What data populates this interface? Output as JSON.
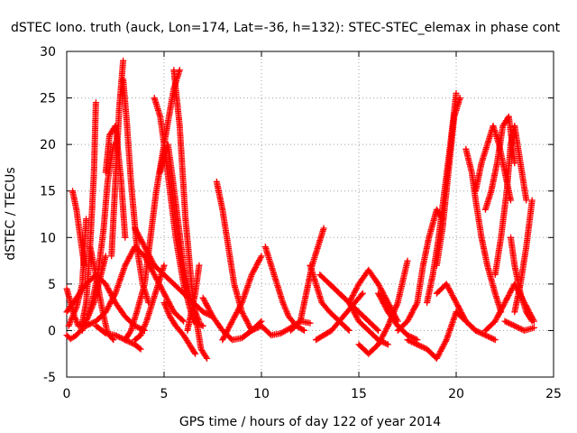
{
  "chart_data": {
    "type": "scatter",
    "title": "dSTEC Iono. truth (auck, Lon=174, Lat=-36, h=132): STEC-STEC_elemax in phase cont",
    "xlabel": "GPS time / hours of day 122 of year 2014",
    "ylabel": "dSTEC  / TECUs",
    "xlim": [
      0,
      25
    ],
    "ylim": [
      -5,
      30
    ],
    "x_ticks": [
      0,
      5,
      10,
      15,
      20,
      25
    ],
    "y_ticks": [
      -5,
      0,
      5,
      10,
      15,
      20,
      25,
      30
    ],
    "grid": true,
    "marker": "+",
    "color": "#ff0000",
    "series": [
      {
        "x": [
          0.0,
          0.2,
          0.4,
          0.6,
          0.8,
          1.0,
          1.2,
          1.4,
          1.5
        ],
        "y": [
          4.5,
          3,
          1.5,
          0.5,
          0.8,
          3,
          9,
          17,
          24.5
        ]
      },
      {
        "x": [
          0.1,
          0.3,
          0.5,
          0.8,
          1.0
        ],
        "y": [
          0.5,
          1.5,
          2.5,
          5,
          12
        ]
      },
      {
        "x": [
          0.3,
          0.5,
          0.7,
          0.9
        ],
        "y": [
          15,
          13,
          10,
          7
        ]
      },
      {
        "x": [
          0.0,
          0.2,
          0.5,
          0.8,
          1.1,
          1.4,
          1.7,
          2.0
        ],
        "y": [
          -0.5,
          -0.9,
          -0.5,
          0.2,
          1.5,
          3,
          5.5,
          8
        ]
      },
      {
        "x": [
          1.2,
          1.5,
          1.8,
          2.1,
          2.4
        ],
        "y": [
          9,
          6,
          2.5,
          -0.3,
          -1
        ]
      },
      {
        "x": [
          0.8,
          1.0,
          1.3,
          1.6,
          1.9,
          2.1,
          2.4
        ],
        "y": [
          0,
          1,
          3,
          6,
          11,
          16,
          20
        ]
      },
      {
        "x": [
          2.0,
          2.2,
          2.5,
          2.8,
          3.0
        ],
        "y": [
          17,
          21,
          22,
          16,
          10
        ]
      },
      {
        "x": [
          2.3,
          2.5,
          2.7,
          2.9
        ],
        "y": [
          8,
          16,
          24,
          29
        ]
      },
      {
        "x": [
          2.9,
          3.1,
          3.3,
          3.6,
          3.9,
          4.2
        ],
        "y": [
          27,
          22,
          16,
          9,
          5,
          3
        ]
      },
      {
        "x": [
          1.5,
          2.0,
          2.5,
          3.0,
          3.5,
          3.8
        ],
        "y": [
          0.5,
          -0.3,
          -0.5,
          -1,
          -1.5,
          -2
        ]
      },
      {
        "x": [
          3.5,
          3.8,
          4.1,
          4.4,
          4.7,
          5.0
        ],
        "y": [
          -1,
          -0.5,
          1,
          3,
          5,
          7
        ]
      },
      {
        "x": [
          3.0,
          3.3,
          3.6,
          4.0,
          4.3,
          4.6,
          5.0,
          5.5,
          5.8
        ],
        "y": [
          -1,
          0,
          2,
          5,
          10,
          15,
          20,
          26,
          28
        ]
      },
      {
        "x": [
          4.5,
          4.8,
          5.0,
          5.3,
          5.6,
          6.0,
          6.5,
          7.0
        ],
        "y": [
          25,
          23,
          20,
          15,
          10,
          5,
          1,
          0.5
        ]
      },
      {
        "x": [
          4.8,
          5.0,
          5.2,
          5.4,
          5.7,
          6.0,
          6.4,
          6.8
        ],
        "y": [
          17,
          19,
          20,
          17,
          12,
          7,
          3,
          1
        ]
      },
      {
        "x": [
          5.5,
          5.8,
          6.1,
          6.5,
          6.9,
          7.2
        ],
        "y": [
          28,
          22,
          12,
          3,
          -2,
          -3
        ]
      },
      {
        "x": [
          5.0,
          5.3,
          5.6,
          6.0,
          6.3,
          6.6
        ],
        "y": [
          3,
          1.5,
          0.5,
          -0.5,
          -1.5,
          -2.5
        ]
      },
      {
        "x": [
          6.2,
          6.4,
          6.6,
          6.8
        ],
        "y": [
          0,
          2,
          4,
          7
        ]
      },
      {
        "x": [
          7.7,
          8.0,
          8.3,
          8.6,
          9.0,
          9.5
        ],
        "y": [
          16,
          13,
          9,
          5,
          2,
          0
        ]
      },
      {
        "x": [
          7.0,
          7.5,
          8.0,
          8.5,
          9.0,
          9.5,
          10.0
        ],
        "y": [
          3.5,
          1.5,
          0,
          -1,
          -0.8,
          0,
          1
        ]
      },
      {
        "x": [
          8.0,
          8.5,
          9.0,
          9.5,
          10.0
        ],
        "y": [
          -1,
          1,
          3,
          6,
          8
        ]
      },
      {
        "x": [
          9.5,
          10.0,
          10.5,
          11.0,
          11.5,
          12.0,
          12.5
        ],
        "y": [
          0,
          0.5,
          -0.5,
          -0.3,
          0.3,
          1,
          0.8
        ]
      },
      {
        "x": [
          10.2,
          10.5,
          10.8,
          11.1,
          11.4,
          11.8,
          12.2
        ],
        "y": [
          9,
          7,
          5,
          3,
          1.5,
          0.5,
          0
        ]
      },
      {
        "x": [
          11.5,
          12.0,
          12.3,
          12.6,
          12.9,
          13.2
        ],
        "y": [
          0,
          1,
          4,
          7,
          9,
          11
        ]
      },
      {
        "x": [
          12.5,
          12.8,
          13.1,
          13.5,
          14.0,
          14.5
        ],
        "y": [
          7,
          5,
          3,
          2,
          1,
          0
        ]
      },
      {
        "x": [
          12.8,
          13.2,
          13.6,
          14.0,
          14.4,
          14.8,
          15.2
        ],
        "y": [
          -1,
          -0.5,
          0,
          1,
          2,
          3,
          4
        ]
      },
      {
        "x": [
          13.0,
          13.5,
          14.0,
          14.5,
          15.0,
          15.5,
          16.0
        ],
        "y": [
          6,
          5,
          4,
          3,
          2,
          1,
          0
        ]
      },
      {
        "x": [
          13.5,
          14.0,
          14.5,
          15.0,
          15.5,
          16.0,
          16.5
        ],
        "y": [
          5,
          4,
          3,
          1,
          0,
          -1,
          -1.5
        ]
      },
      {
        "x": [
          14.5,
          15.0,
          15.5,
          16.0,
          16.5,
          17.0
        ],
        "y": [
          3,
          5,
          6.5,
          5,
          3,
          1
        ]
      },
      {
        "x": [
          15.0,
          15.5,
          16.0,
          16.5,
          17.0,
          17.5
        ],
        "y": [
          -1.5,
          -2.5,
          -1.5,
          0.5,
          3,
          7.5
        ]
      },
      {
        "x": [
          16.0,
          16.5,
          17.0,
          17.5,
          18.0
        ],
        "y": [
          4,
          2,
          0.5,
          -0.5,
          -1
        ]
      },
      {
        "x": [
          17.0,
          17.5,
          18.0,
          18.3,
          18.6,
          19.0,
          19.3
        ],
        "y": [
          0,
          1,
          3,
          7,
          10,
          13,
          12
        ]
      },
      {
        "x": [
          17.5,
          18.0,
          18.5,
          19.0,
          19.5,
          20.0
        ],
        "y": [
          -1,
          -1.5,
          -2,
          -3,
          -1,
          2
        ]
      },
      {
        "x": [
          18.5,
          18.8,
          19.1,
          19.4,
          19.7,
          20.0
        ],
        "y": [
          3,
          6,
          10,
          15,
          20,
          25.5
        ]
      },
      {
        "x": [
          19.0,
          19.3,
          19.6,
          19.9,
          20.2
        ],
        "y": [
          7,
          11,
          17,
          23,
          25
        ]
      },
      {
        "x": [
          19.0,
          19.5,
          20.0,
          20.5,
          21.0
        ],
        "y": [
          4,
          5,
          3,
          1,
          0
        ]
      },
      {
        "x": [
          20.0,
          20.5,
          21.0,
          21.5,
          22.0
        ],
        "y": [
          2,
          1,
          0,
          -0.5,
          -1
        ]
      },
      {
        "x": [
          20.5,
          20.8,
          21.0,
          21.3,
          21.6,
          22.0,
          22.3
        ],
        "y": [
          19.5,
          17,
          14,
          10,
          7,
          4,
          2
        ]
      },
      {
        "x": [
          21.0,
          21.3,
          21.6,
          21.9,
          22.2,
          22.5,
          22.8
        ],
        "y": [
          15,
          18,
          20,
          22,
          20,
          17,
          14
        ]
      },
      {
        "x": [
          21.5,
          21.8,
          22.1,
          22.4,
          22.7,
          23.0
        ],
        "y": [
          13,
          15,
          18,
          22,
          23,
          18
        ]
      },
      {
        "x": [
          22.0,
          22.3,
          22.6,
          22.8,
          23.0,
          23.3,
          23.6
        ],
        "y": [
          6,
          10,
          15,
          20,
          22,
          18,
          14
        ]
      },
      {
        "x": [
          22.8,
          23.0,
          23.3,
          23.6,
          23.9
        ],
        "y": [
          10,
          7,
          4,
          2,
          1
        ]
      },
      {
        "x": [
          21.5,
          22.0,
          22.5,
          23.0,
          23.5,
          24.0
        ],
        "y": [
          0,
          1,
          3,
          5,
          3,
          1
        ]
      },
      {
        "x": [
          22.5,
          23.0,
          23.5,
          24.0
        ],
        "y": [
          1,
          0.5,
          0,
          0.3
        ]
      },
      {
        "x": [
          23.0,
          23.3,
          23.6,
          23.9
        ],
        "y": [
          2,
          5,
          9,
          14
        ]
      },
      {
        "x": [
          0.0,
          0.5,
          1.0,
          1.5,
          2.0,
          2.5,
          3.0,
          3.5,
          4.0
        ],
        "y": [
          2,
          3.5,
          5,
          6,
          5,
          3,
          1.5,
          0.5,
          0
        ]
      },
      {
        "x": [
          1.0,
          1.5,
          2.0,
          2.5,
          3.0,
          3.5,
          4.0,
          4.5,
          5.0,
          5.5,
          6.0
        ],
        "y": [
          0.5,
          1,
          2,
          4,
          7,
          9,
          8,
          6,
          4,
          2,
          1
        ]
      },
      {
        "x": [
          3.5,
          4.0,
          4.5,
          5.0,
          5.5,
          6.0,
          6.5,
          7.0,
          7.5
        ],
        "y": [
          11,
          9,
          7,
          6,
          5,
          4,
          3,
          2,
          1.5
        ]
      }
    ]
  }
}
